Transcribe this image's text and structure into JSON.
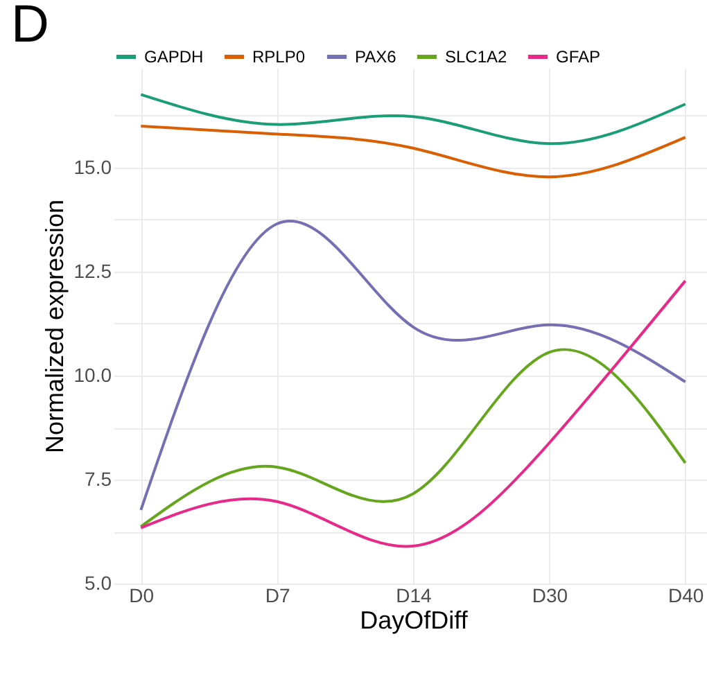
{
  "chart_data": {
    "type": "line",
    "title": "D",
    "xlabel": "DayOfDiff",
    "ylabel": "Normalized expression",
    "categories": [
      "D0",
      "D7",
      "D14",
      "D30",
      "D40"
    ],
    "series": [
      {
        "name": "GAPDH",
        "color": "#1b9e77",
        "values": [
          16.76,
          16.04,
          16.23,
          15.58,
          16.53
        ]
      },
      {
        "name": "RPLP0",
        "color": "#d95f02",
        "values": [
          16.0,
          15.81,
          15.47,
          14.78,
          15.73
        ]
      },
      {
        "name": "PAX6",
        "color": "#7570b3",
        "values": [
          6.77,
          13.65,
          11.17,
          11.22,
          9.85
        ]
      },
      {
        "name": "SLC1A2",
        "color": "#66a61e",
        "values": [
          6.37,
          7.8,
          7.16,
          10.56,
          7.9
        ]
      },
      {
        "name": "GFAP",
        "color": "#e7298a",
        "values": [
          6.34,
          6.97,
          5.9,
          8.38,
          12.28
        ]
      }
    ],
    "ylim": [
      5,
      17.4
    ],
    "yticks": [
      {
        "value": 5,
        "label": "5.0"
      },
      {
        "value": 6.25,
        "label": null
      },
      {
        "value": 7.5,
        "label": "7.5"
      },
      {
        "value": 8.75,
        "label": null
      },
      {
        "value": 10,
        "label": "10.0"
      },
      {
        "value": 11.25,
        "label": null
      },
      {
        "value": 12.5,
        "label": "12.5"
      },
      {
        "value": 13.75,
        "label": null
      },
      {
        "value": 15,
        "label": "15.0"
      },
      {
        "value": 16.25,
        "label": null
      }
    ],
    "grid": true,
    "legend": "top",
    "marker": "none",
    "line_style": "solid"
  }
}
